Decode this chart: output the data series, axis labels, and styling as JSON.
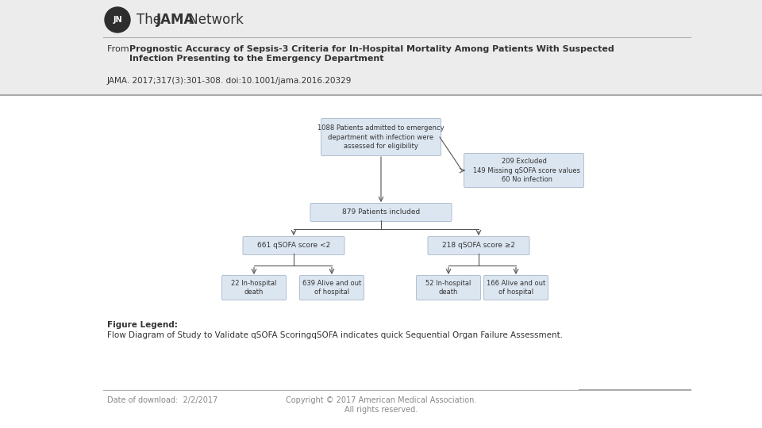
{
  "bg_color": "#ffffff",
  "header_bg": "#ececec",
  "from_label": "From: ",
  "title_bold": "Prognostic Accuracy of Sepsis-3 Criteria for In-Hospital Mortality Among Patients With Suspected\nInfection Presenting to the Emergency Department",
  "citation": "JAMA. 2017;317(3):301-308. doi:10.1001/jama.2016.20329",
  "figure_legend_label": "Figure Legend:",
  "figure_legend_text": "Flow Diagram of Study to Validate qSOFA ScoringqSOFA indicates quick Sequential Organ Failure Assessment.",
  "footer_left": "Date of download:  2/2/2017",
  "footer_right": "Copyright © 2017 American Medical Association.\nAll rights reserved.",
  "box_fill": "#dce6f1",
  "box_edge": "#b0bfd0",
  "box1_text": "1088 Patients admitted to emergency\ndepartment with infection were\nassessed for eligibility",
  "box_excluded_text": "209 Excluded\n   149 Missing qSOFA score values\n   60 No infection",
  "box2_text": "879 Patients included",
  "box_left_text": "661 qSOFA score <2",
  "box_right_text": "218 qSOFA score ≥2",
  "box_ll_text": "22 In-hospital\ndeath",
  "box_lr_text": "639 Alive and out\nof hospital",
  "box_rl_text": "52 In-hospital\ndeath",
  "box_rr_text": "166 Alive and out\nof hospital",
  "arrow_color": "#555555",
  "sep_color": "#aaaaaa",
  "text_color": "#333333",
  "footer_color": "#888888"
}
